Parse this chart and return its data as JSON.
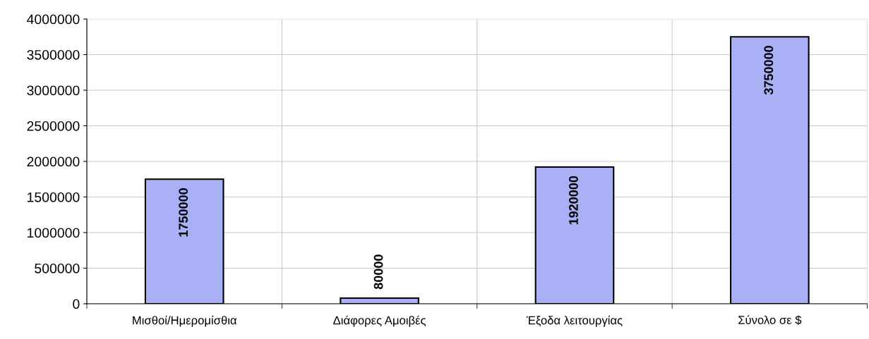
{
  "chart_data": {
    "type": "bar",
    "categories": [
      "Μισθοί/Ημερομίσθια",
      "Διάφορες Αμοιβές",
      "Έξοδα λειτουργίας",
      "Σύνολο σε $"
    ],
    "values": [
      1750000,
      80000,
      1920000,
      3750000
    ],
    "color": "#aab0f5",
    "ylim": [
      0,
      4000000
    ],
    "yticks": [
      0,
      500000,
      1000000,
      1500000,
      2000000,
      2500000,
      3000000,
      3500000,
      4000000
    ],
    "grid": true,
    "data_labels": true
  }
}
